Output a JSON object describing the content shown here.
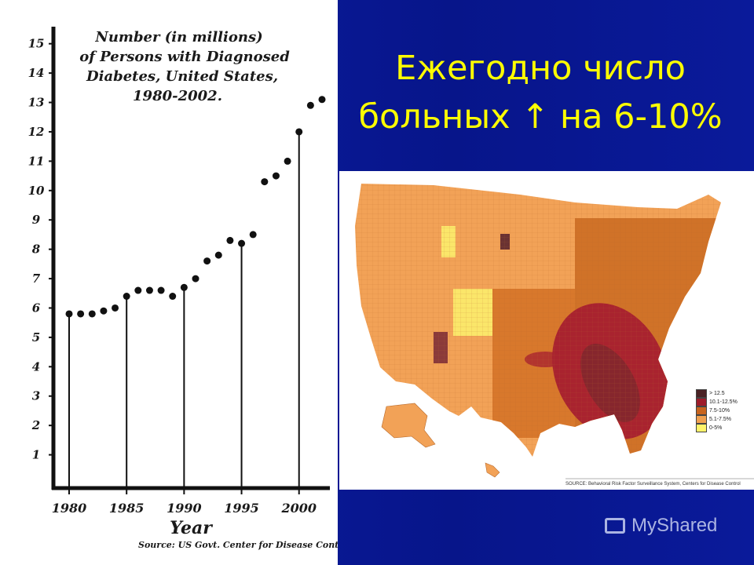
{
  "slide": {
    "title_line1": "Ежегодно число",
    "title_line2": "больных ↑ на 6-10%",
    "title_color": "#ffff00",
    "background_color": "#0a1a9a"
  },
  "chart_data": {
    "type": "scatter",
    "title": "Number (in millions)\nof Persons with Diagnosed\nDiabetes, United States,\n1980-2002.",
    "title_lines": [
      "Number (in millions)",
      "of Persons with Diagnosed",
      "Diabetes, United States,",
      "1980-2002."
    ],
    "xlabel": "Year",
    "ylabel": "",
    "source": "Source:  US Govt.  Center for Disease Control",
    "x_ticks": [
      1980,
      1985,
      1990,
      1995,
      2000
    ],
    "y_ticks": [
      1,
      2,
      3,
      4,
      5,
      6,
      7,
      8,
      9,
      10,
      11,
      12,
      13,
      14,
      15
    ],
    "xlim": [
      1980,
      2002
    ],
    "ylim": [
      0,
      15.5
    ],
    "stems_at": [
      1980,
      1985,
      1990,
      1995,
      2000
    ],
    "points": [
      {
        "x": 1980,
        "y": 5.8
      },
      {
        "x": 1981,
        "y": 5.8
      },
      {
        "x": 1982,
        "y": 5.8
      },
      {
        "x": 1983,
        "y": 5.9
      },
      {
        "x": 1984,
        "y": 6.0
      },
      {
        "x": 1985,
        "y": 6.4
      },
      {
        "x": 1986,
        "y": 6.6
      },
      {
        "x": 1987,
        "y": 6.6
      },
      {
        "x": 1988,
        "y": 6.6
      },
      {
        "x": 1989,
        "y": 6.4
      },
      {
        "x": 1990,
        "y": 6.7
      },
      {
        "x": 1991,
        "y": 7.0
      },
      {
        "x": 1992,
        "y": 7.6
      },
      {
        "x": 1993,
        "y": 7.8
      },
      {
        "x": 1994,
        "y": 8.3
      },
      {
        "x": 1995,
        "y": 8.2
      },
      {
        "x": 1996,
        "y": 8.5
      },
      {
        "x": 1997,
        "y": 10.3
      },
      {
        "x": 1998,
        "y": 10.5
      },
      {
        "x": 1999,
        "y": 11.0
      },
      {
        "x": 2000,
        "y": 12.0
      },
      {
        "x": 2001,
        "y": 12.9
      },
      {
        "x": 2002,
        "y": 13.1
      }
    ]
  },
  "map": {
    "legend": [
      {
        "label": "> 12.5",
        "color": "#4a2224"
      },
      {
        "label": "10.1-12.5%",
        "color": "#9e1c2a"
      },
      {
        "label": "7.5-10%",
        "color": "#c8641e"
      },
      {
        "label": "5.1-7.5%",
        "color": "#f0a050"
      },
      {
        "label": "0-5%",
        "color": "#fff36a"
      }
    ],
    "source": "SOURCE: Behavioral Risk Factor Surveillance System, Centers for Disease Control"
  },
  "watermark": {
    "text": "MyShared",
    "icon": "monitor-icon"
  }
}
